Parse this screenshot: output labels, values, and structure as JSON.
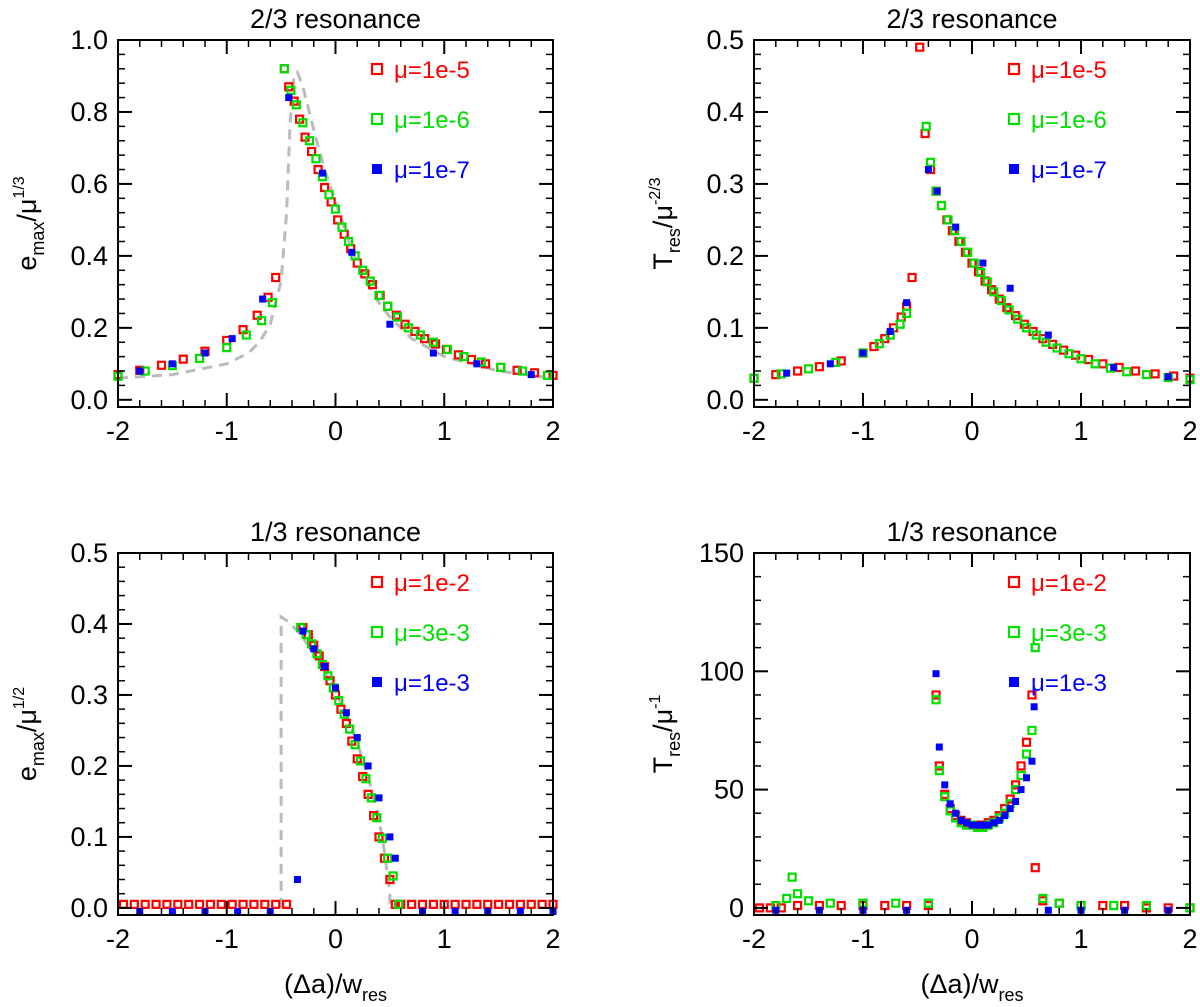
{
  "chart_data": [
    {
      "id": "p1",
      "type": "scatter",
      "title": "2/3 resonance",
      "ylabel_parts": [
        "e",
        "max",
        "/μ",
        "1/3"
      ],
      "xlabel_parts": [],
      "xlim": [
        -2,
        2
      ],
      "ylim": [
        -0.02,
        1.0
      ],
      "xticks": [
        -2,
        -1,
        0,
        1,
        2
      ],
      "xtick_labels": [
        "-2",
        "-1",
        "0",
        "1",
        "2"
      ],
      "yticks": [
        0.0,
        0.2,
        0.4,
        0.6,
        0.8,
        1.0
      ],
      "ytick_labels": [
        "0.0",
        "0.2",
        "0.4",
        "0.6",
        "0.8",
        "1.0"
      ],
      "series": [
        {
          "name": "μ=1e-5",
          "color": "#ff0000",
          "marker": "open-square",
          "x": [
            -2.0,
            -1.8,
            -1.6,
            -1.4,
            -1.2,
            -1.0,
            -0.85,
            -0.72,
            -0.62,
            -0.55,
            -0.47,
            -0.43,
            -0.38,
            -0.33,
            -0.28,
            -0.22,
            -0.16,
            -0.1,
            -0.04,
            0.02,
            0.08,
            0.14,
            0.2,
            0.27,
            0.34,
            0.41,
            0.48,
            0.56,
            0.64,
            0.73,
            0.82,
            0.92,
            1.02,
            1.13,
            1.25,
            1.38,
            1.52,
            1.67,
            1.83,
            2.0
          ],
          "y": [
            0.07,
            0.082,
            0.096,
            0.113,
            0.135,
            0.165,
            0.195,
            0.235,
            0.285,
            0.34,
            0.92,
            0.87,
            0.83,
            0.78,
            0.73,
            0.69,
            0.64,
            0.59,
            0.55,
            0.5,
            0.46,
            0.42,
            0.38,
            0.35,
            0.32,
            0.29,
            0.26,
            0.235,
            0.21,
            0.19,
            0.17,
            0.155,
            0.14,
            0.125,
            0.112,
            0.1,
            0.09,
            0.082,
            0.075,
            0.068
          ]
        },
        {
          "name": "μ=1e-6",
          "color": "#00e000",
          "marker": "open-square",
          "x": [
            -2.0,
            -1.75,
            -1.5,
            -1.25,
            -1.0,
            -0.82,
            -0.68,
            -0.58,
            -0.47,
            -0.41,
            -0.36,
            -0.3,
            -0.24,
            -0.18,
            -0.12,
            -0.06,
            0.0,
            0.06,
            0.12,
            0.18,
            0.25,
            0.32,
            0.4,
            0.48,
            0.57,
            0.67,
            0.78,
            0.9,
            1.03,
            1.18,
            1.34,
            1.52,
            1.72,
            1.95
          ],
          "y": [
            0.065,
            0.08,
            0.095,
            0.115,
            0.145,
            0.18,
            0.22,
            0.27,
            0.92,
            0.86,
            0.82,
            0.77,
            0.72,
            0.67,
            0.62,
            0.57,
            0.53,
            0.48,
            0.44,
            0.4,
            0.36,
            0.33,
            0.29,
            0.26,
            0.23,
            0.2,
            0.18,
            0.16,
            0.14,
            0.12,
            0.105,
            0.09,
            0.08,
            0.068
          ]
        },
        {
          "name": "μ=1e-7",
          "color": "#0000ff",
          "marker": "filled-square",
          "x": [
            -1.8,
            -1.5,
            -1.2,
            -0.95,
            -0.67,
            -0.43,
            -0.12,
            0.15,
            0.5,
            0.9,
            1.3,
            1.8
          ],
          "y": [
            0.08,
            0.1,
            0.13,
            0.17,
            0.28,
            0.84,
            0.63,
            0.41,
            0.21,
            0.13,
            0.1,
            0.07
          ]
        }
      ],
      "theory": {
        "x": [
          -2.0,
          -1.5,
          -1.0,
          -0.8,
          -0.7,
          -0.6,
          -0.5,
          -0.45,
          -0.42,
          -0.4,
          -0.38,
          -0.35,
          -0.3,
          -0.2,
          -0.1,
          0.0,
          0.1,
          0.2,
          0.3,
          0.4,
          0.5,
          0.7,
          1.0,
          1.5,
          2.0
        ],
        "y": [
          0.06,
          0.07,
          0.1,
          0.13,
          0.16,
          0.21,
          0.33,
          0.52,
          0.75,
          0.85,
          0.9,
          0.91,
          0.87,
          0.75,
          0.64,
          0.55,
          0.46,
          0.38,
          0.32,
          0.27,
          0.23,
          0.17,
          0.12,
          0.08,
          0.06
        ]
      }
    },
    {
      "id": "p2",
      "type": "scatter",
      "title": "2/3 resonance",
      "ylabel_parts": [
        "T",
        "res",
        "/μ",
        "-2/3"
      ],
      "xlabel_parts": [],
      "xlim": [
        -2,
        2
      ],
      "ylim": [
        -0.01,
        0.5
      ],
      "xticks": [
        -2,
        -1,
        0,
        1,
        2
      ],
      "xtick_labels": [
        "-2",
        "-1",
        "0",
        "1",
        "2"
      ],
      "yticks": [
        0.0,
        0.1,
        0.2,
        0.3,
        0.4,
        0.5
      ],
      "ytick_labels": [
        "0.0",
        "0.1",
        "0.2",
        "0.3",
        "0.4",
        "0.5"
      ],
      "series": [
        {
          "name": "μ=1e-5",
          "color": "#ff0000",
          "marker": "open-square",
          "x": [
            -2.0,
            -1.8,
            -1.6,
            -1.4,
            -1.2,
            -1.0,
            -0.9,
            -0.8,
            -0.72,
            -0.65,
            -0.6,
            -0.55,
            -0.48,
            -0.43,
            -0.38,
            -0.33,
            -0.28,
            -0.23,
            -0.18,
            -0.12,
            -0.06,
            0.0,
            0.06,
            0.12,
            0.18,
            0.25,
            0.32,
            0.4,
            0.48,
            0.56,
            0.65,
            0.74,
            0.84,
            0.95,
            1.07,
            1.2,
            1.35,
            1.5,
            1.68,
            1.85,
            2.0
          ],
          "y": [
            0.03,
            0.035,
            0.04,
            0.046,
            0.054,
            0.065,
            0.074,
            0.085,
            0.1,
            0.115,
            0.13,
            0.17,
            0.49,
            0.37,
            0.32,
            0.29,
            0.27,
            0.25,
            0.235,
            0.22,
            0.205,
            0.19,
            0.178,
            0.165,
            0.153,
            0.14,
            0.128,
            0.117,
            0.105,
            0.095,
            0.085,
            0.077,
            0.069,
            0.062,
            0.056,
            0.05,
            0.045,
            0.04,
            0.036,
            0.033,
            0.03
          ]
        },
        {
          "name": "μ=1e-6",
          "color": "#00e000",
          "marker": "open-square",
          "x": [
            -2.0,
            -1.75,
            -1.5,
            -1.25,
            -1.0,
            -0.85,
            -0.75,
            -0.66,
            -0.6,
            -0.42,
            -0.38,
            -0.33,
            -0.28,
            -0.22,
            -0.16,
            -0.1,
            -0.04,
            0.02,
            0.08,
            0.14,
            0.2,
            0.27,
            0.34,
            0.42,
            0.5,
            0.59,
            0.68,
            0.78,
            0.89,
            1.0,
            1.13,
            1.27,
            1.42,
            1.6,
            1.8,
            2.0
          ],
          "y": [
            0.03,
            0.036,
            0.043,
            0.052,
            0.065,
            0.078,
            0.09,
            0.105,
            0.12,
            0.38,
            0.33,
            0.29,
            0.27,
            0.25,
            0.235,
            0.22,
            0.205,
            0.19,
            0.177,
            0.164,
            0.15,
            0.138,
            0.125,
            0.112,
            0.1,
            0.09,
            0.08,
            0.072,
            0.064,
            0.057,
            0.05,
            0.044,
            0.039,
            0.035,
            0.031,
            0.028
          ]
        },
        {
          "name": "μ=1e-7",
          "color": "#0000ff",
          "marker": "filled-square",
          "x": [
            -1.7,
            -1.3,
            -1.0,
            -0.75,
            -0.6,
            -0.4,
            -0.32,
            -0.15,
            0.1,
            0.35,
            0.7,
            1.3,
            1.8
          ],
          "y": [
            0.037,
            0.05,
            0.065,
            0.095,
            0.135,
            0.32,
            0.29,
            0.24,
            0.19,
            0.155,
            0.09,
            0.045,
            0.032
          ]
        }
      ],
      "theory": null
    },
    {
      "id": "p3",
      "type": "scatter",
      "title": "1/3 resonance",
      "ylabel_parts": [
        "e",
        "max",
        "/μ",
        "1/2"
      ],
      "xlabel_parts": [
        "(Δa)/w",
        "res"
      ],
      "xlim": [
        -2,
        2
      ],
      "ylim": [
        -0.01,
        0.5
      ],
      "xticks": [
        -2,
        -1,
        0,
        1,
        2
      ],
      "xtick_labels": [
        "-2",
        "-1",
        "0",
        "1",
        "2"
      ],
      "yticks": [
        0.0,
        0.1,
        0.2,
        0.3,
        0.4,
        0.5
      ],
      "ytick_labels": [
        "0.0",
        "0.1",
        "0.2",
        "0.3",
        "0.4",
        "0.5"
      ],
      "series": [
        {
          "name": "μ=1e-2",
          "color": "#ff0000",
          "marker": "open-square",
          "x": [
            -1.95,
            -1.85,
            -1.75,
            -1.65,
            -1.55,
            -1.45,
            -1.35,
            -1.25,
            -1.15,
            -1.05,
            -0.95,
            -0.85,
            -0.75,
            -0.65,
            -0.55,
            -0.45,
            -0.3,
            -0.25,
            -0.2,
            -0.15,
            -0.1,
            -0.05,
            0.0,
            0.05,
            0.1,
            0.15,
            0.2,
            0.25,
            0.3,
            0.35,
            0.4,
            0.45,
            0.5,
            0.55,
            0.6,
            0.7,
            0.8,
            0.9,
            1.0,
            1.1,
            1.2,
            1.3,
            1.4,
            1.5,
            1.6,
            1.7,
            1.8,
            1.9,
            2.0
          ],
          "y": [
            0.005,
            0.005,
            0.005,
            0.005,
            0.005,
            0.005,
            0.005,
            0.005,
            0.005,
            0.005,
            0.005,
            0.005,
            0.005,
            0.005,
            0.005,
            0.005,
            0.395,
            0.385,
            0.37,
            0.355,
            0.34,
            0.32,
            0.3,
            0.28,
            0.26,
            0.235,
            0.21,
            0.185,
            0.16,
            0.13,
            0.1,
            0.07,
            0.04,
            0.005,
            0.005,
            0.005,
            0.005,
            0.005,
            0.005,
            0.005,
            0.005,
            0.005,
            0.005,
            0.005,
            0.005,
            0.005,
            0.005,
            0.005,
            0.005
          ]
        },
        {
          "name": "μ=3e-3",
          "color": "#00e000",
          "marker": "open-square",
          "x": [
            -0.32,
            -0.27,
            -0.22,
            -0.17,
            -0.12,
            -0.07,
            -0.02,
            0.03,
            0.08,
            0.13,
            0.18,
            0.23,
            0.28,
            0.33,
            0.38,
            0.43,
            0.48,
            0.53,
            0.58
          ],
          "y": [
            0.395,
            0.385,
            0.372,
            0.358,
            0.343,
            0.327,
            0.31,
            0.292,
            0.273,
            0.252,
            0.23,
            0.207,
            0.182,
            0.155,
            0.127,
            0.098,
            0.07,
            0.045,
            0.005
          ]
        },
        {
          "name": "μ=1e-3",
          "color": "#0000ff",
          "marker": "filled-square",
          "x": [
            -1.8,
            -1.5,
            -1.2,
            -0.9,
            -0.6,
            -0.35,
            -0.3,
            -0.2,
            -0.1,
            0.0,
            0.1,
            0.2,
            0.3,
            0.4,
            0.5,
            0.55,
            0.8,
            1.1,
            1.4,
            1.7,
            2.0
          ],
          "y": [
            -0.005,
            -0.005,
            -0.005,
            -0.005,
            -0.005,
            0.04,
            0.39,
            0.365,
            0.34,
            0.31,
            0.275,
            0.24,
            0.2,
            0.155,
            0.1,
            0.07,
            -0.005,
            -0.005,
            -0.005,
            -0.005,
            -0.005
          ]
        }
      ],
      "theory": {
        "x": [
          -0.5,
          -0.5,
          -0.45,
          -0.4,
          -0.35,
          -0.3,
          -0.2,
          -0.1,
          0.0,
          0.1,
          0.2,
          0.3,
          0.4,
          0.45,
          0.5,
          0.5
        ],
        "y": [
          0.0,
          0.41,
          0.405,
          0.398,
          0.39,
          0.38,
          0.36,
          0.335,
          0.305,
          0.272,
          0.232,
          0.185,
          0.125,
          0.08,
          0.02,
          0.0
        ]
      }
    },
    {
      "id": "p4",
      "type": "scatter",
      "title": "1/3 resonance",
      "ylabel_parts": [
        "T",
        "res",
        "/μ",
        "-1"
      ],
      "xlabel_parts": [
        "(Δa)/w",
        "res"
      ],
      "xlim": [
        -2,
        2
      ],
      "ylim": [
        -3,
        150
      ],
      "xticks": [
        -2,
        -1,
        0,
        1,
        2
      ],
      "xtick_labels": [
        "-2",
        "-1",
        "0",
        "1",
        "2"
      ],
      "yticks": [
        0,
        50,
        100,
        150
      ],
      "ytick_labels": [
        "0",
        "50",
        "100",
        "150"
      ],
      "series": [
        {
          "name": "μ=1e-2",
          "color": "#ff0000",
          "marker": "open-square",
          "x": [
            -1.95,
            -1.85,
            -1.75,
            -1.6,
            -1.4,
            -1.2,
            -1.0,
            -0.8,
            -0.6,
            -0.4,
            -0.33,
            -0.3,
            -0.25,
            -0.2,
            -0.15,
            -0.1,
            -0.05,
            0.0,
            0.05,
            0.1,
            0.15,
            0.2,
            0.25,
            0.3,
            0.35,
            0.4,
            0.45,
            0.5,
            0.55,
            0.58,
            0.65,
            0.8,
            1.0,
            1.2,
            1.4,
            1.6,
            1.8,
            2.0
          ],
          "y": [
            0,
            0,
            0,
            1,
            1,
            1,
            1,
            1,
            1,
            1,
            90,
            60,
            48,
            42,
            39,
            37,
            36,
            35,
            35,
            35,
            36,
            37,
            39,
            42,
            46,
            52,
            60,
            70,
            90,
            17,
            3,
            2,
            1,
            1,
            1,
            0,
            0,
            0
          ]
        },
        {
          "name": "μ=3e-3",
          "color": "#00e000",
          "marker": "open-square",
          "x": [
            -1.8,
            -1.7,
            -1.65,
            -1.6,
            -1.5,
            -1.3,
            -1.0,
            -0.7,
            -0.4,
            -0.33,
            -0.3,
            -0.25,
            -0.2,
            -0.15,
            -0.1,
            -0.05,
            0.0,
            0.05,
            0.1,
            0.15,
            0.2,
            0.25,
            0.3,
            0.35,
            0.4,
            0.45,
            0.5,
            0.55,
            0.58,
            0.65,
            0.8,
            1.0,
            1.3,
            1.6,
            2.0
          ],
          "y": [
            1,
            4,
            13,
            6,
            3,
            2,
            2,
            2,
            2,
            88,
            58,
            47,
            41,
            38,
            36,
            35,
            35,
            34,
            34,
            35,
            36,
            38,
            40,
            44,
            50,
            56,
            65,
            75,
            110,
            4,
            2,
            1,
            1,
            1,
            0
          ]
        },
        {
          "name": "μ=1e-3",
          "color": "#0000ff",
          "marker": "filled-square",
          "x": [
            -1.8,
            -1.4,
            -1.0,
            -0.6,
            -0.33,
            -0.3,
            -0.25,
            -0.2,
            -0.15,
            -0.1,
            -0.05,
            0.0,
            0.05,
            0.1,
            0.15,
            0.2,
            0.25,
            0.3,
            0.35,
            0.4,
            0.45,
            0.5,
            0.55,
            0.57,
            0.7,
            1.0,
            1.4,
            1.8
          ],
          "y": [
            -1,
            -1,
            -1,
            -1,
            99,
            68,
            52,
            44,
            40,
            37,
            36,
            35,
            35,
            35,
            35,
            36,
            37,
            39,
            42,
            45,
            50,
            55,
            62,
            85,
            -1,
            -1,
            -1,
            -1
          ]
        }
      ],
      "theory": null
    }
  ]
}
